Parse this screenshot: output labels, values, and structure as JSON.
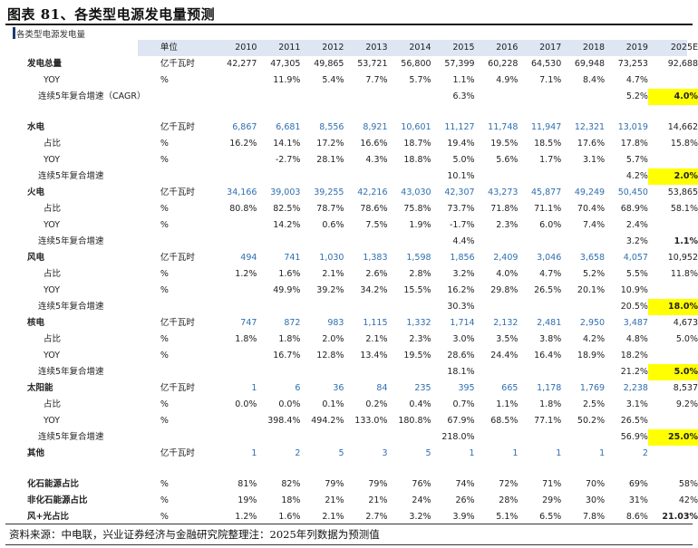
{
  "title": "图表 81、各类型电源发电量预测",
  "subtitle": "各类型电源发电量",
  "header": {
    "unit": "单位",
    "years": [
      "2010",
      "2011",
      "2012",
      "2013",
      "2014",
      "2015",
      "2016",
      "2017",
      "2018",
      "2019",
      "2025E"
    ]
  },
  "rows": [
    {
      "label": "发电总量",
      "unit": "亿千瓦时",
      "vals": [
        "42,277",
        "47,305",
        "49,865",
        "53,721",
        "56,800",
        "57,399",
        "60,228",
        "64,530",
        "69,948",
        "73,253",
        "92,688"
      ],
      "style": "total"
    },
    {
      "label": "YOY",
      "unit": "%",
      "vals": [
        "",
        "11.9%",
        "5.4%",
        "7.7%",
        "5.7%",
        "1.1%",
        "4.9%",
        "7.1%",
        "8.4%",
        "4.7%",
        ""
      ],
      "style": "sub"
    },
    {
      "label": "连续5年复合增速（CAGR）",
      "unit": "",
      "vals": [
        "",
        "",
        "",
        "",
        "",
        "6.3%",
        "",
        "",
        "",
        "5.2%",
        "4.0%"
      ],
      "style": "cagr",
      "hl": true
    },
    {
      "gap": true
    },
    {
      "label": "水电",
      "unit": "亿千瓦时",
      "vals": [
        "6,867",
        "6,681",
        "8,556",
        "8,921",
        "10,601",
        "11,127",
        "11,748",
        "11,947",
        "12,321",
        "13,019",
        "14,662"
      ],
      "style": "head"
    },
    {
      "label": "占比",
      "unit": "%",
      "vals": [
        "16.2%",
        "14.1%",
        "17.2%",
        "16.6%",
        "18.7%",
        "19.4%",
        "19.5%",
        "18.5%",
        "17.6%",
        "17.8%",
        "15.8%"
      ],
      "style": "sub"
    },
    {
      "label": "YOY",
      "unit": "%",
      "vals": [
        "",
        "-2.7%",
        "28.1%",
        "4.3%",
        "18.8%",
        "5.0%",
        "5.6%",
        "1.7%",
        "3.1%",
        "5.7%",
        ""
      ],
      "style": "sub"
    },
    {
      "label": "连续5年复合增速",
      "unit": "",
      "vals": [
        "",
        "",
        "",
        "",
        "",
        "10.1%",
        "",
        "",
        "",
        "4.2%",
        "2.0%"
      ],
      "style": "cagr",
      "hl": true
    },
    {
      "label": "火电",
      "unit": "亿千瓦时",
      "vals": [
        "34,166",
        "39,003",
        "39,255",
        "42,216",
        "43,030",
        "42,307",
        "43,273",
        "45,877",
        "49,249",
        "50,450",
        "53,865"
      ],
      "style": "head"
    },
    {
      "label": "占比",
      "unit": "%",
      "vals": [
        "80.8%",
        "82.5%",
        "78.7%",
        "78.6%",
        "75.8%",
        "73.7%",
        "71.8%",
        "71.1%",
        "70.4%",
        "68.9%",
        "58.1%"
      ],
      "style": "sub"
    },
    {
      "label": "YOY",
      "unit": "%",
      "vals": [
        "",
        "14.2%",
        "0.6%",
        "7.5%",
        "1.9%",
        "-1.7%",
        "2.3%",
        "6.0%",
        "7.4%",
        "2.4%",
        ""
      ],
      "style": "sub"
    },
    {
      "label": "连续5年复合增速",
      "unit": "",
      "vals": [
        "",
        "",
        "",
        "",
        "",
        "4.4%",
        "",
        "",
        "",
        "3.2%",
        "1.1%"
      ],
      "style": "cagr",
      "hl": false
    },
    {
      "label": "风电",
      "unit": "亿千瓦时",
      "vals": [
        "494",
        "741",
        "1,030",
        "1,383",
        "1,598",
        "1,856",
        "2,409",
        "3,046",
        "3,658",
        "4,057",
        "10,952"
      ],
      "style": "head"
    },
    {
      "label": "占比",
      "unit": "%",
      "vals": [
        "1.2%",
        "1.6%",
        "2.1%",
        "2.6%",
        "2.8%",
        "3.2%",
        "4.0%",
        "4.7%",
        "5.2%",
        "5.5%",
        "11.8%"
      ],
      "style": "sub"
    },
    {
      "label": "YOY",
      "unit": "%",
      "vals": [
        "",
        "49.9%",
        "39.2%",
        "34.2%",
        "15.5%",
        "16.2%",
        "29.8%",
        "26.5%",
        "20.1%",
        "10.9%",
        ""
      ],
      "style": "sub"
    },
    {
      "label": "连续5年复合增速",
      "unit": "",
      "vals": [
        "",
        "",
        "",
        "",
        "",
        "30.3%",
        "",
        "",
        "",
        "20.5%",
        "18.0%"
      ],
      "style": "cagr",
      "hl": true
    },
    {
      "label": "核电",
      "unit": "亿千瓦时",
      "vals": [
        "747",
        "872",
        "983",
        "1,115",
        "1,332",
        "1,714",
        "2,132",
        "2,481",
        "2,950",
        "3,487",
        "4,673"
      ],
      "style": "head"
    },
    {
      "label": "占比",
      "unit": "%",
      "vals": [
        "1.8%",
        "1.8%",
        "2.0%",
        "2.1%",
        "2.3%",
        "3.0%",
        "3.5%",
        "3.8%",
        "4.2%",
        "4.8%",
        "5.0%"
      ],
      "style": "sub"
    },
    {
      "label": "YOY",
      "unit": "%",
      "vals": [
        "",
        "16.7%",
        "12.8%",
        "13.4%",
        "19.5%",
        "28.6%",
        "24.4%",
        "16.4%",
        "18.9%",
        "18.2%",
        ""
      ],
      "style": "sub"
    },
    {
      "label": "连续5年复合增速",
      "unit": "",
      "vals": [
        "",
        "",
        "",
        "",
        "",
        "18.1%",
        "",
        "",
        "",
        "21.2%",
        "5.0%"
      ],
      "style": "cagr",
      "hl": true
    },
    {
      "label": "太阳能",
      "unit": "亿千瓦时",
      "vals": [
        "1",
        "6",
        "36",
        "84",
        "235",
        "395",
        "665",
        "1,178",
        "1,769",
        "2,238",
        "8,537"
      ],
      "style": "head"
    },
    {
      "label": "占比",
      "unit": "%",
      "vals": [
        "0.0%",
        "0.0%",
        "0.1%",
        "0.2%",
        "0.4%",
        "0.7%",
        "1.1%",
        "1.8%",
        "2.5%",
        "3.1%",
        "9.2%"
      ],
      "style": "sub"
    },
    {
      "label": "YOY",
      "unit": "%",
      "vals": [
        "",
        "398.4%",
        "494.2%",
        "133.0%",
        "180.8%",
        "67.9%",
        "68.5%",
        "77.1%",
        "50.2%",
        "26.5%",
        ""
      ],
      "style": "sub"
    },
    {
      "label": "连续5年复合增速",
      "unit": "",
      "vals": [
        "",
        "",
        "",
        "",
        "",
        "218.0%",
        "",
        "",
        "",
        "56.9%",
        "25.0%"
      ],
      "style": "cagr",
      "hl": true
    },
    {
      "label": "其他",
      "unit": "亿千瓦时",
      "vals": [
        "1",
        "2",
        "5",
        "3",
        "5",
        "1",
        "1",
        "1",
        "1",
        "2",
        ""
      ],
      "style": "head"
    },
    {
      "gap": true
    },
    {
      "label": "化石能源占比",
      "unit": "%",
      "vals": [
        "81%",
        "82%",
        "79%",
        "79%",
        "76%",
        "74%",
        "72%",
        "71%",
        "70%",
        "69%",
        "58%"
      ],
      "style": "summary"
    },
    {
      "label": "非化石能源占比",
      "unit": "%",
      "vals": [
        "19%",
        "18%",
        "21%",
        "21%",
        "24%",
        "26%",
        "28%",
        "29%",
        "30%",
        "31%",
        "42%"
      ],
      "style": "summary"
    },
    {
      "label": "风+光占比",
      "unit": "%",
      "vals": [
        "1.2%",
        "1.6%",
        "2.1%",
        "2.7%",
        "3.2%",
        "3.9%",
        "5.1%",
        "6.5%",
        "7.8%",
        "8.6%",
        "21.03%"
      ],
      "style": "summary",
      "lastbold": true
    }
  ],
  "source": "资料来源：中电联，兴业证券经济与金融研究院整理注：2025年列数据为预测值"
}
